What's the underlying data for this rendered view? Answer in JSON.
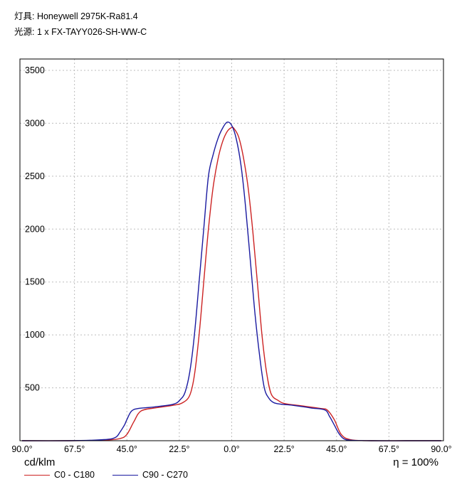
{
  "header": {
    "luminaire": "灯具: Honeywell 2975K-Ra81.4",
    "lamp": "光源: 1 x FX-TAYY026-SH-WW-C"
  },
  "unit_label": "cd/klm",
  "efficiency": {
    "symbol": "η",
    "text": " = 100%"
  },
  "chart_data": {
    "type": "line",
    "title": "",
    "xlabel": "",
    "ylabel": "cd/klm",
    "x_tick_labels": [
      "90.0°",
      "67.5°",
      "45.0°",
      "22.5°",
      "0.0°",
      "22.5°",
      "45.0°",
      "67.5°",
      "90.0°"
    ],
    "x_tick_values": [
      -90,
      -67.5,
      -45,
      -22.5,
      0,
      22.5,
      45,
      67.5,
      90
    ],
    "y_ticks": [
      500,
      1000,
      1500,
      2000,
      2500,
      3000,
      3500
    ],
    "xlim": [
      -90,
      90
    ],
    "ylim": [
      0,
      3500
    ],
    "grid": true,
    "legend_position": "bottom-left",
    "series": [
      {
        "name": "C0 - C180",
        "color": "#cc2222",
        "x": [
          -90,
          -70,
          -55,
          -48,
          -45,
          -42,
          -39,
          -33,
          -25,
          -21,
          -18,
          -16,
          -14,
          -12,
          -10,
          -8,
          -6,
          -4,
          -2,
          0,
          1,
          3,
          5,
          7,
          9,
          11,
          13,
          15,
          17,
          20,
          23,
          30,
          38,
          41,
          44,
          47,
          51,
          60,
          75,
          90
        ],
        "y": [
          0,
          0,
          5,
          20,
          60,
          180,
          280,
          310,
          335,
          360,
          430,
          620,
          1000,
          1500,
          2000,
          2390,
          2650,
          2820,
          2920,
          2960,
          2950,
          2870,
          2680,
          2400,
          1990,
          1500,
          1000,
          640,
          440,
          380,
          350,
          330,
          305,
          290,
          200,
          60,
          10,
          0,
          0,
          0
        ]
      },
      {
        "name": "C90 - C270",
        "color": "#1a1aa0",
        "x": [
          -90,
          -70,
          -55,
          -50,
          -48,
          -46,
          -45,
          -43,
          -40,
          -33,
          -25,
          -22,
          -20,
          -18,
          -16,
          -14,
          -12,
          -10,
          -8,
          -6,
          -4,
          -2,
          0,
          2,
          4,
          6,
          8,
          10,
          12,
          14,
          16,
          18,
          21,
          26,
          34,
          40,
          42,
          44,
          46,
          48,
          51,
          60,
          75,
          90
        ],
        "y": [
          0,
          0,
          10,
          30,
          80,
          150,
          200,
          280,
          305,
          320,
          345,
          390,
          460,
          650,
          1000,
          1500,
          2000,
          2500,
          2700,
          2850,
          2950,
          3010,
          2980,
          2850,
          2600,
          2200,
          1700,
          1200,
          800,
          500,
          400,
          360,
          345,
          335,
          310,
          290,
          230,
          150,
          70,
          20,
          5,
          0,
          0,
          0
        ]
      }
    ]
  }
}
